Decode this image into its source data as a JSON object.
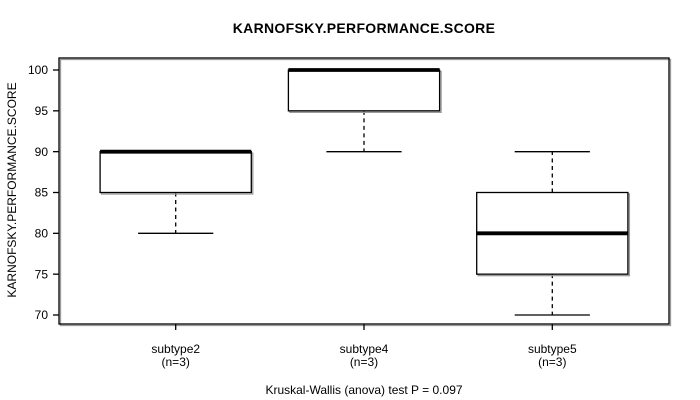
{
  "chart_data": {
    "type": "boxplot",
    "title": "KARNOFSKY.PERFORMANCE.SCORE",
    "ylabel": "KARNOFSKY.PERFORMANCE.SCORE",
    "caption": "Kruskal-Wallis (anova) test P = 0.097",
    "ylim": [
      70,
      100
    ],
    "yticks": [
      70,
      75,
      80,
      85,
      90,
      95,
      100
    ],
    "grid": false,
    "legend_position": "none",
    "groups": [
      {
        "label": "subtype2",
        "sublabel": "(n=3)",
        "n": 3,
        "median": 90,
        "q1": 85,
        "q3": 90,
        "whisker_low": 80,
        "whisker_high": 90
      },
      {
        "label": "subtype4",
        "sublabel": "(n=3)",
        "n": 3,
        "median": 100,
        "q1": 95,
        "q3": 100,
        "whisker_low": 90,
        "whisker_high": 100
      },
      {
        "label": "subtype5",
        "sublabel": "(n=3)",
        "n": 3,
        "median": 80,
        "q1": 75,
        "q3": 85,
        "whisker_low": 70,
        "whisker_high": 90
      }
    ]
  },
  "colors": {
    "stroke": "#000000",
    "shadow": "#9a9a9a",
    "box_fill": "#ffffff",
    "background": "#ffffff",
    "text": "#000000"
  }
}
